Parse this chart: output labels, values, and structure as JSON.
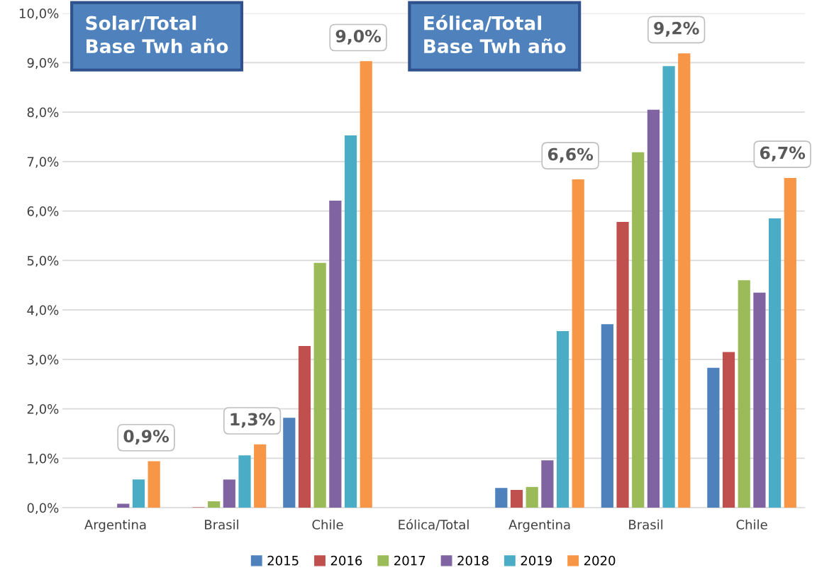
{
  "chart_data": {
    "type": "bar",
    "categories": [
      "Argentina",
      "Brasil",
      "Chile",
      "Eólica/Total",
      "Argentina",
      "Brasil",
      "Chile"
    ],
    "series": [
      {
        "name": "2015",
        "color": "#4f81bd",
        "values": [
          0,
          0,
          1.82,
          null,
          0.4,
          3.71,
          2.83
        ]
      },
      {
        "name": "2016",
        "color": "#c0504d",
        "values": [
          0,
          0.01,
          3.27,
          null,
          0.36,
          5.78,
          3.15
        ]
      },
      {
        "name": "2017",
        "color": "#9bbb59",
        "values": [
          0,
          0.13,
          4.95,
          null,
          0.42,
          7.19,
          4.6
        ]
      },
      {
        "name": "2018",
        "color": "#8064a2",
        "values": [
          0.08,
          0.57,
          6.21,
          null,
          0.96,
          8.05,
          4.35
        ]
      },
      {
        "name": "2019",
        "color": "#4bacc6",
        "values": [
          0.57,
          1.06,
          7.53,
          null,
          3.57,
          8.93,
          5.85
        ]
      },
      {
        "name": "2020",
        "color": "#f79646",
        "values": [
          0.94,
          1.28,
          9.03,
          null,
          6.64,
          9.19,
          6.67
        ],
        "value_labels": [
          "0,9%",
          "1,3%",
          "9,0%",
          null,
          "6,6%",
          "9,2%",
          "6,7%"
        ]
      }
    ],
    "ylim": [
      0,
      10
    ],
    "yticks": [
      {
        "value": 0,
        "label": "0,0%"
      },
      {
        "value": 1,
        "label": "1,0%"
      },
      {
        "value": 2,
        "label": "2,0%"
      },
      {
        "value": 3,
        "label": "3,0%"
      },
      {
        "value": 4,
        "label": "4,0%"
      },
      {
        "value": 5,
        "label": "5,0%"
      },
      {
        "value": 6,
        "label": "6,0%"
      },
      {
        "value": 7,
        "label": "7,0%"
      },
      {
        "value": 8,
        "label": "8,0%"
      },
      {
        "value": 9,
        "label": "9,0%"
      },
      {
        "value": 10,
        "label": "10,0%"
      }
    ],
    "grid": "y",
    "legend": "bottom",
    "annotations": [
      "Solar/Total\nBase Twh año",
      "Eólica/Total\nBase Twh año"
    ]
  }
}
